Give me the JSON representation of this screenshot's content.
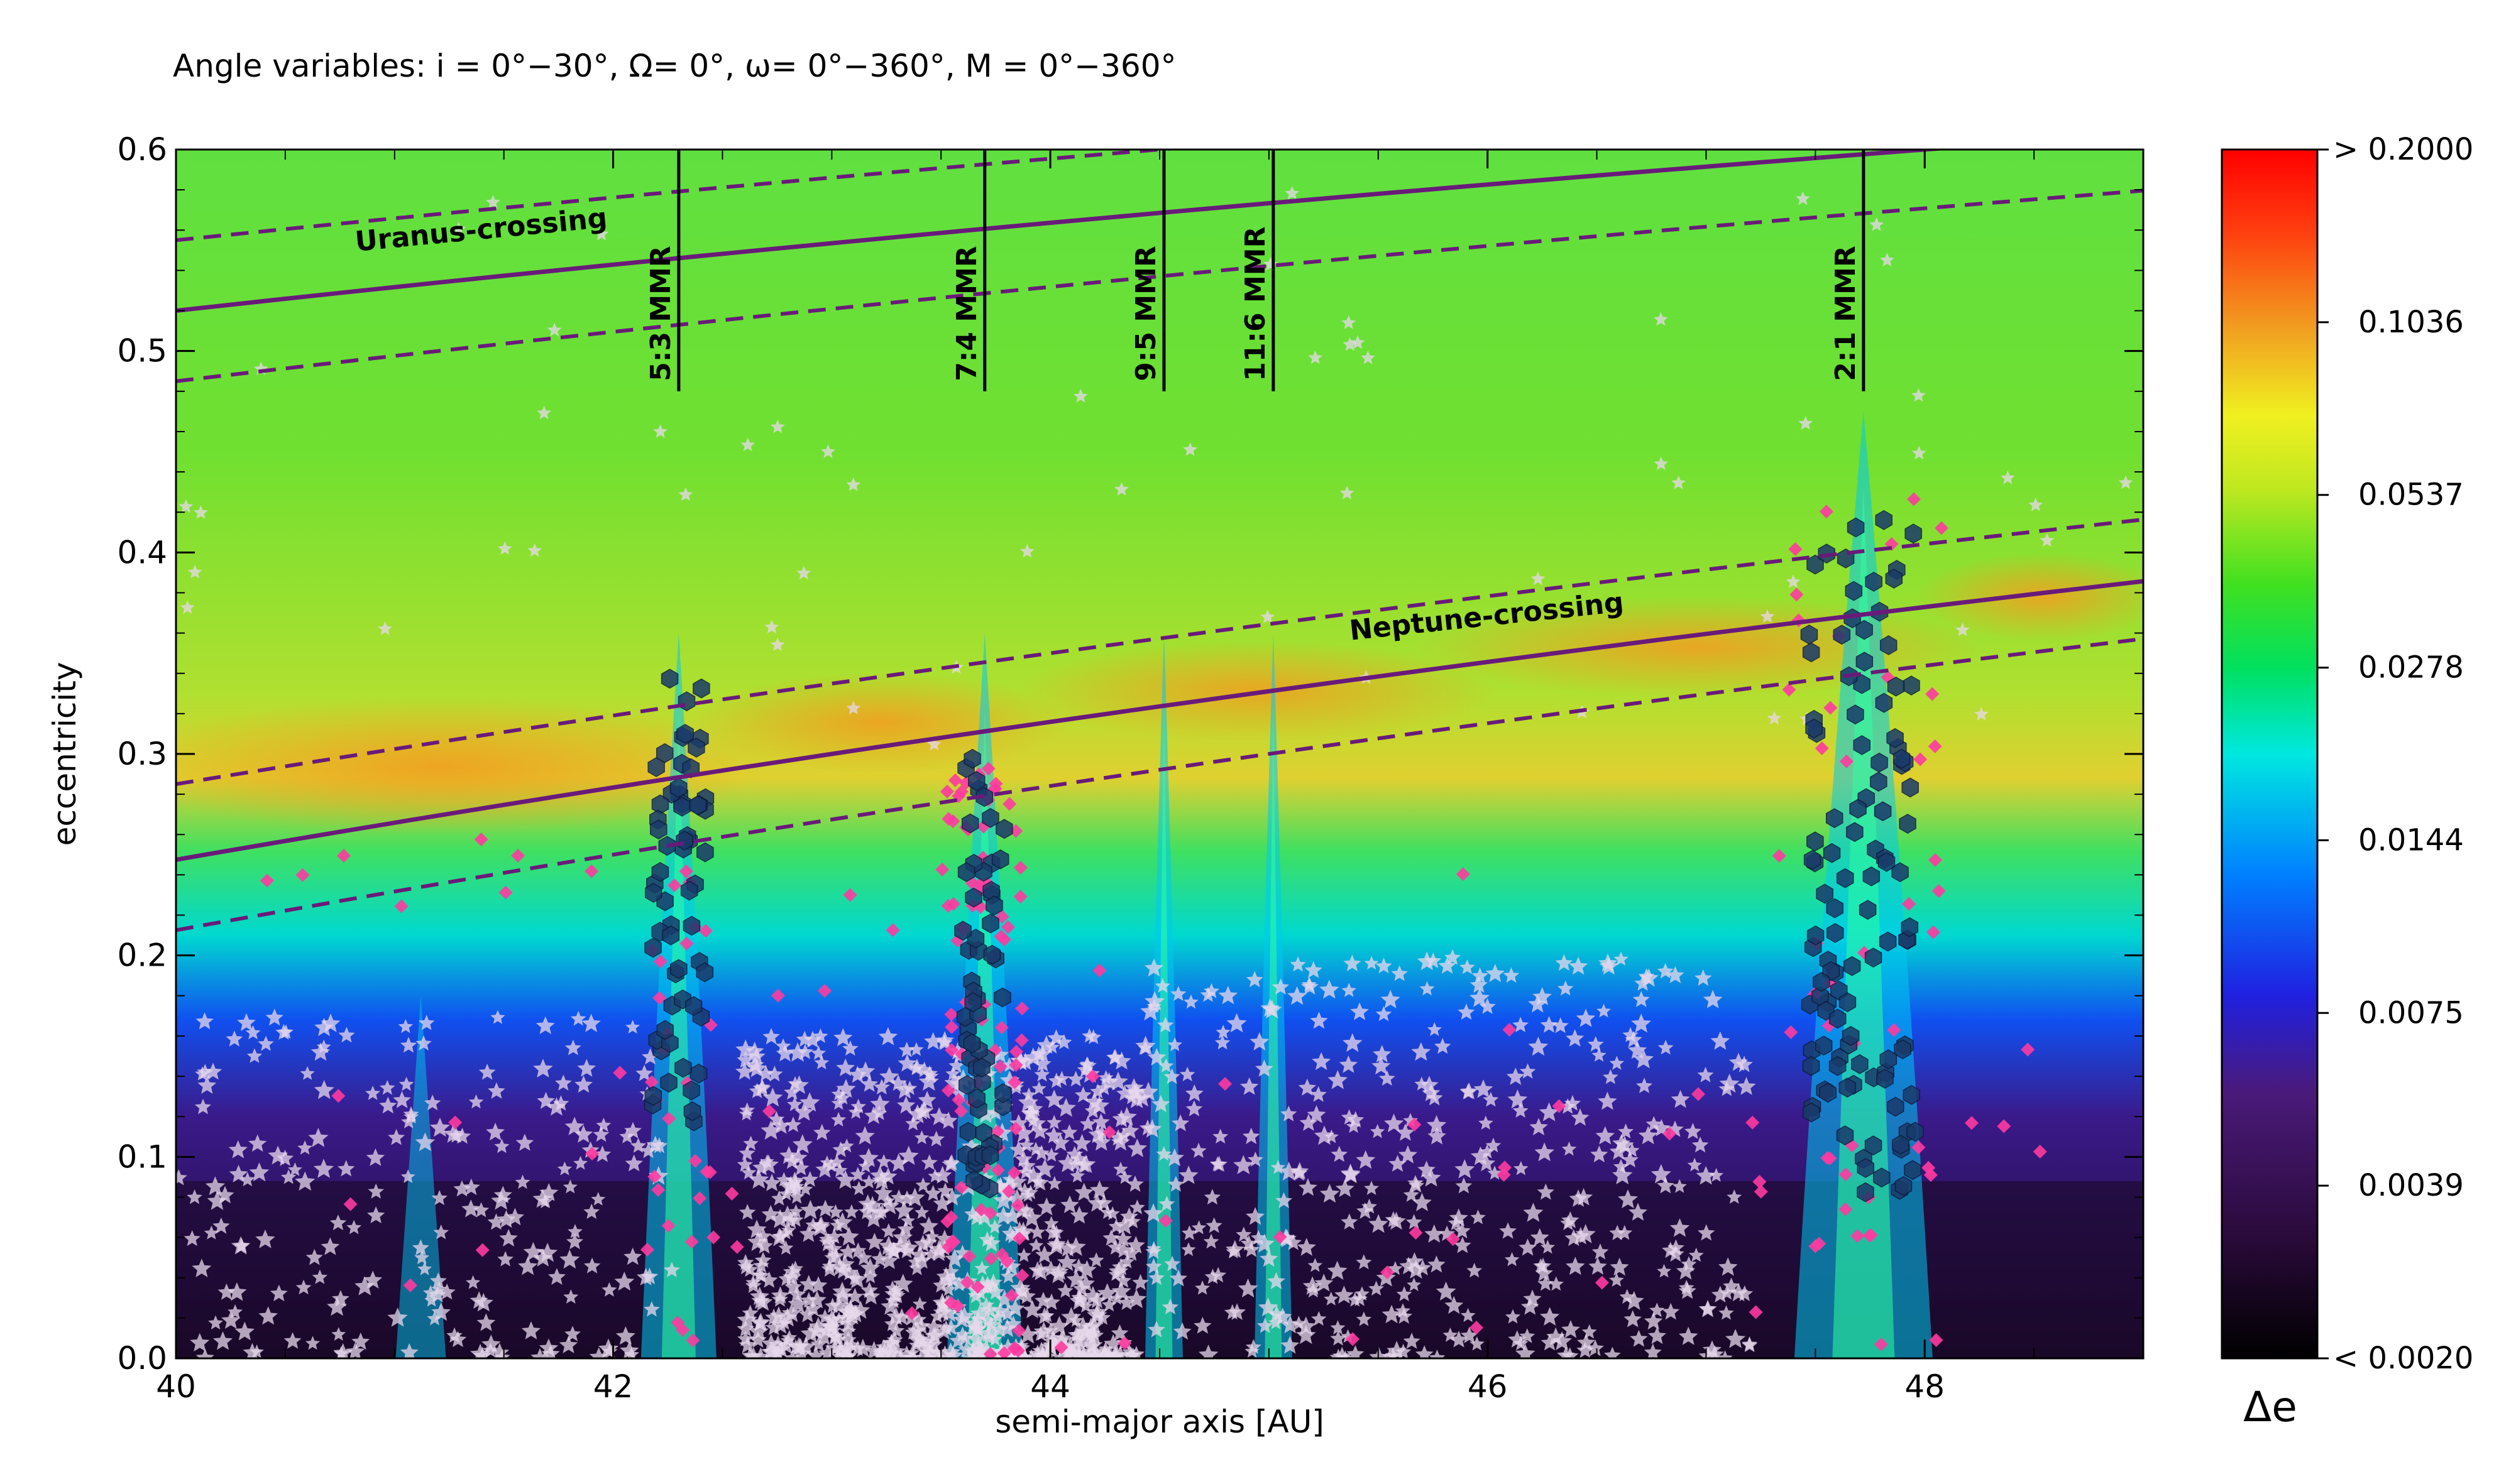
{
  "chart_data": {
    "type": "heatmap",
    "title": "Angle variables: i = 0°−30°, Ω= 0°, ω= 0°−360°, M = 0°−360°",
    "xlabel": "semi-major axis [AU]",
    "ylabel": "eccentricity",
    "xlim": [
      40,
      49
    ],
    "ylim": [
      0.0,
      0.6
    ],
    "xticks": [
      "40",
      "42",
      "44",
      "46",
      "48"
    ],
    "xtick_values": [
      40,
      42,
      44,
      46,
      48
    ],
    "yticks": [
      "0.0",
      "0.1",
      "0.2",
      "0.3",
      "0.4",
      "0.5",
      "0.6"
    ],
    "ytick_values": [
      0.0,
      0.1,
      0.2,
      0.3,
      0.4,
      0.5,
      0.6
    ],
    "colorbar": {
      "label": "Δe",
      "ticks": [
        "> 0.2000",
        "0.1036",
        "0.0537",
        "0.0278",
        "0.0144",
        "0.0075",
        "0.0039",
        "< 0.0020"
      ],
      "colors": [
        "#000000",
        "#2a0a3a",
        "#4a1a7a",
        "#2020e0",
        "#00a0ff",
        "#00e8e0",
        "#20e030",
        "#a0e020",
        "#f0f020",
        "#f0a020",
        "#ff4010",
        "#ff0000"
      ]
    },
    "resonances": [
      {
        "label": "5:3 MMR",
        "a": 42.3
      },
      {
        "label": "7:4 MMR",
        "a": 43.7
      },
      {
        "label": "9:5 MMR",
        "a": 44.52
      },
      {
        "label": "11:6 MMR",
        "a": 45.02
      },
      {
        "label": "2:1 MMR",
        "a": 47.72
      }
    ],
    "crossing_curves": [
      {
        "label": "Uranus-crossing",
        "q_AU": 19.2,
        "band_AU": [
          17.8,
          20.6
        ]
      },
      {
        "label": "Neptune-crossing",
        "q_AU": 30.1,
        "band_AU": [
          28.6,
          31.5
        ]
      }
    ],
    "series": [
      {
        "type": "stars",
        "color": "#e8d8ec"
      },
      {
        "type": "diamonds",
        "color": "#ff3aa0"
      },
      {
        "type": "hexagons",
        "color": "#1a3a6a"
      }
    ]
  }
}
